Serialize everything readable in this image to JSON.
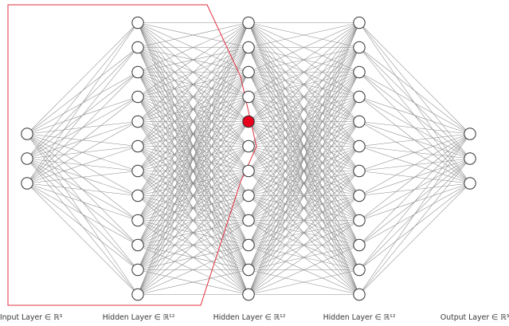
{
  "diagram": {
    "layers": [
      {
        "label": "Input Layer ∈ ℝ³",
        "neurons": 3
      },
      {
        "label": "Hidden Layer ∈ ℝ¹²",
        "neurons": 12
      },
      {
        "label": "Hidden Layer ∈ ℝ¹²",
        "neurons": 12
      },
      {
        "label": "Hidden Layer ∈ ℝ¹²",
        "neurons": 12
      },
      {
        "label": "Output Layer ∈ ℝ³",
        "neurons": 3
      }
    ],
    "highlighted_neuron": {
      "layer": 2,
      "index": 4
    },
    "colors": {
      "connection": "#8a8a8a",
      "neuron_stroke": "#333333",
      "neuron_fill": "#ffffff",
      "highlight_fill": "#e8001c",
      "highlight_outline": "#e03040"
    }
  }
}
